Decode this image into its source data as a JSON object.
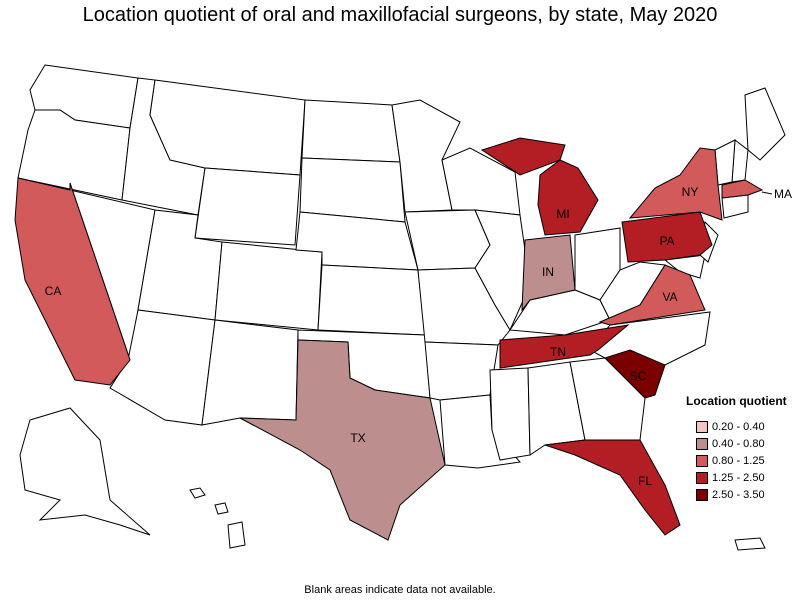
{
  "title": "Location quotient of oral and maxillofacial surgeons, by state, May 2020",
  "legend": {
    "title": "Location quotient",
    "items": [
      {
        "label": "0.20 - 0.40",
        "color": "#f7c4c4"
      },
      {
        "label": "0.40 - 0.80",
        "color": "#bc8e8e"
      },
      {
        "label": "0.80 - 1.25",
        "color": "#d35a5a"
      },
      {
        "label": "1.25 - 2.50",
        "color": "#b31d24"
      },
      {
        "label": "2.50 - 3.50",
        "color": "#7b0000"
      }
    ]
  },
  "states": {
    "CA": {
      "label": "CA",
      "class": "0.80 - 1.25"
    },
    "TX": {
      "label": "TX",
      "class": "0.40 - 0.80"
    },
    "IN": {
      "label": "IN",
      "class": "0.40 - 0.80"
    },
    "MI": {
      "label": "MI",
      "class": "1.25 - 2.50"
    },
    "TN": {
      "label": "TN",
      "class": "1.25 - 2.50"
    },
    "PA": {
      "label": "PA",
      "class": "1.25 - 2.50"
    },
    "NY": {
      "label": "NY",
      "class": "0.80 - 1.25"
    },
    "VA": {
      "label": "VA",
      "class": "0.80 - 1.25"
    },
    "MA": {
      "label": "MA",
      "class": "0.80 - 1.25"
    },
    "SC": {
      "label": "SC",
      "class": "2.50 - 3.50"
    },
    "FL": {
      "label": "FL",
      "class": "1.25 - 2.50"
    }
  },
  "footnote": "Blank areas indicate data not available."
}
